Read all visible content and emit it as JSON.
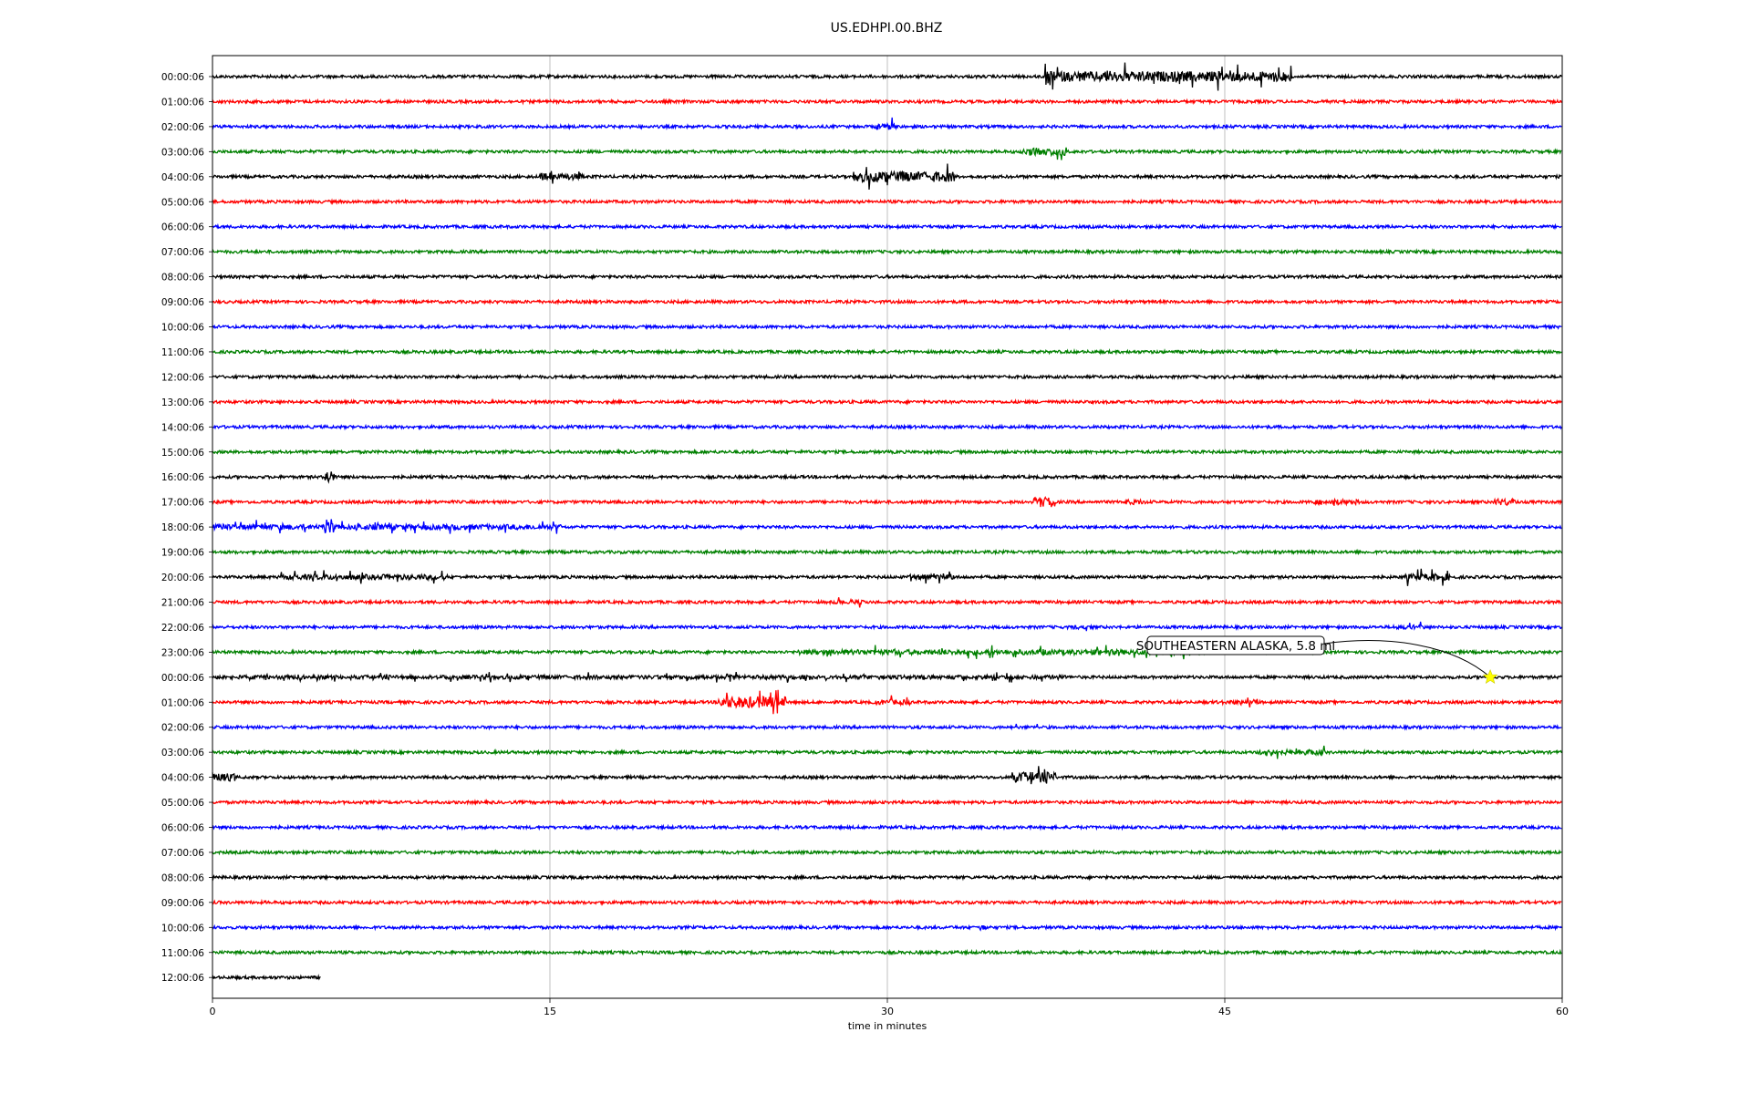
{
  "chart_data": {
    "type": "line",
    "subtype": "dayplot-helicorder",
    "title": "US.EDHPI.00.BHZ",
    "xlabel": "time in minutes",
    "ylabel": "",
    "xlim": [
      0,
      60
    ],
    "xticks": [
      0,
      15,
      30,
      45,
      60
    ],
    "xtick_labels": [
      "0",
      "15",
      "30",
      "45",
      "60"
    ],
    "vertical_gridlines_at": [
      15,
      30,
      45
    ],
    "color_cycle": [
      "#000000",
      "#ff0000",
      "#0000ff",
      "#008000"
    ],
    "row_labels": [
      "00:00:06",
      "01:00:06",
      "02:00:06",
      "03:00:06",
      "04:00:06",
      "05:00:06",
      "06:00:06",
      "07:00:06",
      "08:00:06",
      "09:00:06",
      "10:00:06",
      "11:00:06",
      "12:00:06",
      "13:00:06",
      "14:00:06",
      "15:00:06",
      "16:00:06",
      "17:00:06",
      "18:00:06",
      "19:00:06",
      "20:00:06",
      "21:00:06",
      "22:00:06",
      "23:00:06",
      "00:00:06",
      "01:00:06",
      "02:00:06",
      "03:00:06",
      "04:00:06",
      "05:00:06",
      "06:00:06",
      "07:00:06",
      "08:00:06",
      "09:00:06",
      "10:00:06",
      "11:00:06",
      "12:00:06"
    ],
    "row_end_minute": [
      60,
      60,
      60,
      60,
      60,
      60,
      60,
      60,
      60,
      60,
      60,
      60,
      60,
      60,
      60,
      60,
      60,
      60,
      60,
      60,
      60,
      60,
      60,
      60,
      60,
      60,
      60,
      60,
      60,
      60,
      60,
      60,
      60,
      60,
      60,
      60,
      4.8
    ],
    "bursts": [
      {
        "row": 0,
        "x": [
          37,
          48
        ],
        "amp": 0.8
      },
      {
        "row": 2,
        "x": [
          29.5,
          30.5
        ],
        "amp": 0.5
      },
      {
        "row": 3,
        "x": [
          36,
          38
        ],
        "amp": 0.6
      },
      {
        "row": 4,
        "x": [
          14.5,
          16.5
        ],
        "amp": 0.5
      },
      {
        "row": 4,
        "x": [
          28.5,
          33
        ],
        "amp": 0.8
      },
      {
        "row": 16,
        "x": [
          5,
          5.4
        ],
        "amp": 1.0
      },
      {
        "row": 17,
        "x": [
          36.5,
          37.5
        ],
        "amp": 0.8
      },
      {
        "row": 17,
        "x": [
          40.5,
          41.5
        ],
        "amp": 0.4
      },
      {
        "row": 17,
        "x": [
          49,
          51
        ],
        "amp": 0.4
      },
      {
        "row": 17,
        "x": [
          57,
          58
        ],
        "amp": 0.5
      },
      {
        "row": 18,
        "x": [
          0,
          15.5
        ],
        "amp": 0.4
      },
      {
        "row": 18,
        "x": [
          5,
          5.4
        ],
        "amp": 1.0
      },
      {
        "row": 20,
        "x": [
          3,
          10.5
        ],
        "amp": 0.4
      },
      {
        "row": 20,
        "x": [
          31,
          33
        ],
        "amp": 0.4
      },
      {
        "row": 20,
        "x": [
          53,
          55
        ],
        "amp": 0.5
      },
      {
        "row": 21,
        "x": [
          27.5,
          29
        ],
        "amp": 0.3
      },
      {
        "row": 22,
        "x": [
          38,
          39
        ],
        "amp": 0.3
      },
      {
        "row": 22,
        "x": [
          52.5,
          54
        ],
        "amp": 0.3
      },
      {
        "row": 23,
        "x": [
          26,
          44
        ],
        "amp": 0.4
      },
      {
        "row": 24,
        "x": [
          0,
          38
        ],
        "amp": 0.3
      },
      {
        "row": 25,
        "x": [
          22.5,
          25.5
        ],
        "amp": 0.9
      },
      {
        "row": 25,
        "x": [
          29.5,
          31
        ],
        "amp": 0.4
      },
      {
        "row": 25,
        "x": [
          44.5,
          46.5
        ],
        "amp": 0.3
      },
      {
        "row": 26,
        "x": [
          35.5,
          37
        ],
        "amp": 0.2
      },
      {
        "row": 26,
        "x": [
          48.5,
          49.5
        ],
        "amp": 0.2
      },
      {
        "row": 27,
        "x": [
          46.5,
          49.5
        ],
        "amp": 0.4
      },
      {
        "row": 28,
        "x": [
          0,
          1
        ],
        "amp": 0.6
      },
      {
        "row": 28,
        "x": [
          35.5,
          37.5
        ],
        "amp": 0.8
      },
      {
        "row": 34,
        "x": [
          34,
          34.5
        ],
        "amp": 0.4
      }
    ],
    "events": [
      {
        "row": 24,
        "x": 56.8,
        "label": "SOUTHEASTERN ALASKA, 5.8 ml",
        "marker": "star",
        "marker_color": "#ffff00"
      }
    ]
  },
  "annotations": {
    "event_label": "SOUTHEASTERN ALASKA, 5.8 ml"
  }
}
